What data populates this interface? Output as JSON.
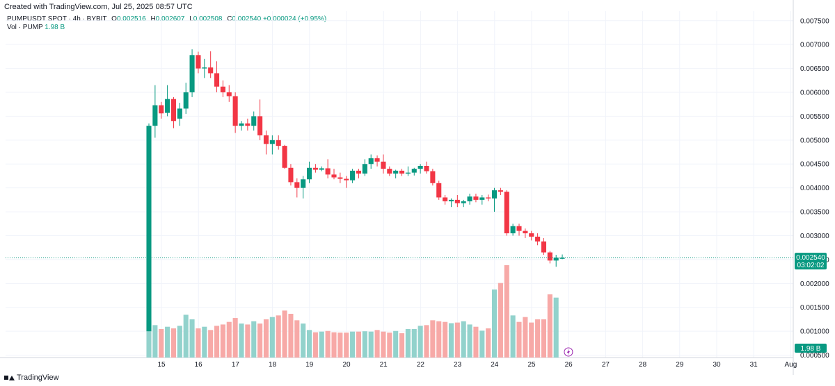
{
  "header": {
    "created": "Created with TradingView.com, Jul 25, 2025 08:57 UTC"
  },
  "legend": {
    "symbol": "PUMPUSDT SPOT · 4h · BYBIT",
    "o_label": "O",
    "o_value": "0.002516",
    "h_label": "H",
    "h_value": "0.002607",
    "l_label": "L",
    "l_value": "0.002508",
    "c_label": "C",
    "c_value": "0.002540",
    "change": "+0.000024 (+0.95%)",
    "vol_label": "Vol · PUMP",
    "vol_value": "1.98 B"
  },
  "footer": {
    "brand": "TradingView"
  },
  "colors": {
    "up": "#26a69a",
    "down": "#ef5350",
    "up_candle": "#089981",
    "down_candle": "#f23645",
    "vol_up": "#92d2cc",
    "vol_down": "#f7a9a7",
    "grid": "#f0f3fa",
    "price_tag": "#089981"
  },
  "chart_data": {
    "type": "candlestick",
    "symbol": "PUMPUSDT",
    "interval": "4h",
    "yaxis_ticks": [
      "0.007500",
      "0.007000",
      "0.006500",
      "0.006000",
      "0.005500",
      "0.005000",
      "0.004500",
      "0.004000",
      "0.003500",
      "0.003000",
      "0.002500",
      "0.002000",
      "0.001500",
      "0.001000",
      "0.000500"
    ],
    "ylim": [
      0.00045,
      0.0077
    ],
    "xaxis_ticks": [
      "15",
      "16",
      "17",
      "18",
      "19",
      "20",
      "21",
      "22",
      "23",
      "24",
      "25",
      "26",
      "27",
      "28",
      "29",
      "30",
      "31",
      "Aug"
    ],
    "last_price_label": "0.002540",
    "countdown_label": "03:02:02",
    "volume_label": "1.98 B",
    "candles": [
      {
        "o": 0.001,
        "h": 0.00535,
        "l": 0.001,
        "c": 0.0053
      },
      {
        "o": 0.0053,
        "h": 0.00615,
        "l": 0.00505,
        "c": 0.00573
      },
      {
        "o": 0.00573,
        "h": 0.0058,
        "l": 0.00545,
        "c": 0.00556
      },
      {
        "o": 0.00557,
        "h": 0.00615,
        "l": 0.0055,
        "c": 0.00586
      },
      {
        "o": 0.00586,
        "h": 0.0059,
        "l": 0.00525,
        "c": 0.0054
      },
      {
        "o": 0.00545,
        "h": 0.00578,
        "l": 0.0053,
        "c": 0.00566
      },
      {
        "o": 0.00566,
        "h": 0.0062,
        "l": 0.00555,
        "c": 0.006
      },
      {
        "o": 0.006,
        "h": 0.0069,
        "l": 0.0059,
        "c": 0.00678
      },
      {
        "o": 0.00678,
        "h": 0.00685,
        "l": 0.0064,
        "c": 0.0065
      },
      {
        "o": 0.0065,
        "h": 0.0067,
        "l": 0.0063,
        "c": 0.00652
      },
      {
        "o": 0.00652,
        "h": 0.00686,
        "l": 0.0063,
        "c": 0.0064
      },
      {
        "o": 0.0064,
        "h": 0.00665,
        "l": 0.006,
        "c": 0.00612
      },
      {
        "o": 0.00612,
        "h": 0.00625,
        "l": 0.0059,
        "c": 0.006
      },
      {
        "o": 0.006,
        "h": 0.00615,
        "l": 0.0058,
        "c": 0.00592
      },
      {
        "o": 0.00592,
        "h": 0.006,
        "l": 0.00515,
        "c": 0.0053
      },
      {
        "o": 0.0053,
        "h": 0.0054,
        "l": 0.0052,
        "c": 0.00535
      },
      {
        "o": 0.00535,
        "h": 0.00545,
        "l": 0.0052,
        "c": 0.0053
      },
      {
        "o": 0.0053,
        "h": 0.0056,
        "l": 0.0052,
        "c": 0.0055
      },
      {
        "o": 0.0055,
        "h": 0.00585,
        "l": 0.005,
        "c": 0.0051
      },
      {
        "o": 0.0051,
        "h": 0.0052,
        "l": 0.0047,
        "c": 0.00492
      },
      {
        "o": 0.00492,
        "h": 0.0051,
        "l": 0.0047,
        "c": 0.005
      },
      {
        "o": 0.005,
        "h": 0.0051,
        "l": 0.0048,
        "c": 0.00488
      },
      {
        "o": 0.00488,
        "h": 0.0049,
        "l": 0.0044,
        "c": 0.00442
      },
      {
        "o": 0.00442,
        "h": 0.0045,
        "l": 0.00405,
        "c": 0.00412
      },
      {
        "o": 0.00412,
        "h": 0.0042,
        "l": 0.0038,
        "c": 0.004
      },
      {
        "o": 0.004,
        "h": 0.00425,
        "l": 0.00378,
        "c": 0.00418
      },
      {
        "o": 0.00418,
        "h": 0.00455,
        "l": 0.0041,
        "c": 0.00442
      },
      {
        "o": 0.00442,
        "h": 0.0045,
        "l": 0.00432,
        "c": 0.00438
      },
      {
        "o": 0.00438,
        "h": 0.00445,
        "l": 0.00435,
        "c": 0.00441
      },
      {
        "o": 0.00441,
        "h": 0.0046,
        "l": 0.0042,
        "c": 0.00428
      },
      {
        "o": 0.00428,
        "h": 0.0044,
        "l": 0.00418,
        "c": 0.00422
      },
      {
        "o": 0.00422,
        "h": 0.00432,
        "l": 0.0041,
        "c": 0.00419
      },
      {
        "o": 0.00419,
        "h": 0.00425,
        "l": 0.004,
        "c": 0.00416
      },
      {
        "o": 0.00416,
        "h": 0.0044,
        "l": 0.0041,
        "c": 0.00436
      },
      {
        "o": 0.00436,
        "h": 0.0044,
        "l": 0.0042,
        "c": 0.0043
      },
      {
        "o": 0.0043,
        "h": 0.0046,
        "l": 0.00425,
        "c": 0.0045
      },
      {
        "o": 0.0045,
        "h": 0.0047,
        "l": 0.0044,
        "c": 0.00462
      },
      {
        "o": 0.00462,
        "h": 0.00468,
        "l": 0.00445,
        "c": 0.00455
      },
      {
        "o": 0.00455,
        "h": 0.0047,
        "l": 0.0043,
        "c": 0.0044
      },
      {
        "o": 0.0044,
        "h": 0.00445,
        "l": 0.00425,
        "c": 0.0043
      },
      {
        "o": 0.0043,
        "h": 0.00438,
        "l": 0.0042,
        "c": 0.00436
      },
      {
        "o": 0.00436,
        "h": 0.0044,
        "l": 0.00425,
        "c": 0.0043
      },
      {
        "o": 0.0043,
        "h": 0.00445,
        "l": 0.00425,
        "c": 0.00432
      },
      {
        "o": 0.00432,
        "h": 0.00442,
        "l": 0.00426,
        "c": 0.0044
      },
      {
        "o": 0.0044,
        "h": 0.0045,
        "l": 0.0043,
        "c": 0.00446
      },
      {
        "o": 0.00446,
        "h": 0.00455,
        "l": 0.0043,
        "c": 0.00435
      },
      {
        "o": 0.00435,
        "h": 0.0044,
        "l": 0.00405,
        "c": 0.0041
      },
      {
        "o": 0.0041,
        "h": 0.00415,
        "l": 0.00375,
        "c": 0.0038
      },
      {
        "o": 0.0038,
        "h": 0.00385,
        "l": 0.00365,
        "c": 0.00372
      },
      {
        "o": 0.00372,
        "h": 0.00378,
        "l": 0.0036,
        "c": 0.00375
      },
      {
        "o": 0.00375,
        "h": 0.00385,
        "l": 0.0036,
        "c": 0.00368
      },
      {
        "o": 0.00368,
        "h": 0.00375,
        "l": 0.0036,
        "c": 0.00372
      },
      {
        "o": 0.00372,
        "h": 0.00388,
        "l": 0.00365,
        "c": 0.00382
      },
      {
        "o": 0.00382,
        "h": 0.00388,
        "l": 0.0037,
        "c": 0.00375
      },
      {
        "o": 0.00375,
        "h": 0.00385,
        "l": 0.00365,
        "c": 0.0038
      },
      {
        "o": 0.0038,
        "h": 0.00386,
        "l": 0.00372,
        "c": 0.00378
      },
      {
        "o": 0.00378,
        "h": 0.004,
        "l": 0.0035,
        "c": 0.00395
      },
      {
        "o": 0.00395,
        "h": 0.004,
        "l": 0.00385,
        "c": 0.00392
      },
      {
        "o": 0.00392,
        "h": 0.00395,
        "l": 0.003,
        "c": 0.00305
      },
      {
        "o": 0.00305,
        "h": 0.00325,
        "l": 0.003,
        "c": 0.0032
      },
      {
        "o": 0.0032,
        "h": 0.00325,
        "l": 0.003,
        "c": 0.0031
      },
      {
        "o": 0.0031,
        "h": 0.00315,
        "l": 0.00295,
        "c": 0.00305
      },
      {
        "o": 0.00305,
        "h": 0.0031,
        "l": 0.0029,
        "c": 0.00298
      },
      {
        "o": 0.00298,
        "h": 0.00305,
        "l": 0.0028,
        "c": 0.00288
      },
      {
        "o": 0.00288,
        "h": 0.00295,
        "l": 0.0026,
        "c": 0.00265
      },
      {
        "o": 0.00265,
        "h": 0.00268,
        "l": 0.00242,
        "c": 0.00248
      },
      {
        "o": 0.00248,
        "h": 0.0026,
        "l": 0.00235,
        "c": 0.00254
      },
      {
        "o": 0.002516,
        "h": 0.002607,
        "l": 0.002508,
        "c": 0.00254
      }
    ],
    "volume": [
      1.15,
      1.0,
      0.88,
      0.95,
      0.9,
      0.98,
      1.32,
      1.18,
      0.9,
      0.95,
      0.85,
      0.98,
      1.02,
      1.1,
      1.22,
      1.05,
      1.02,
      1.12,
      1.05,
      1.18,
      1.25,
      1.3,
      1.45,
      1.35,
      1.15,
      1.05,
      0.85,
      0.78,
      0.8,
      0.82,
      0.78,
      0.77,
      0.77,
      0.8,
      0.8,
      0.81,
      0.8,
      0.85,
      0.8,
      0.77,
      0.82,
      0.75,
      0.88,
      0.88,
      0.98,
      1.0,
      1.15,
      1.12,
      1.1,
      1.06,
      1.08,
      1.12,
      1.02,
      0.95,
      0.83,
      0.9,
      2.1,
      2.3,
      2.85,
      1.3,
      1.1,
      1.25,
      1.08,
      1.18,
      1.18,
      1.95,
      1.85,
      null
    ]
  }
}
